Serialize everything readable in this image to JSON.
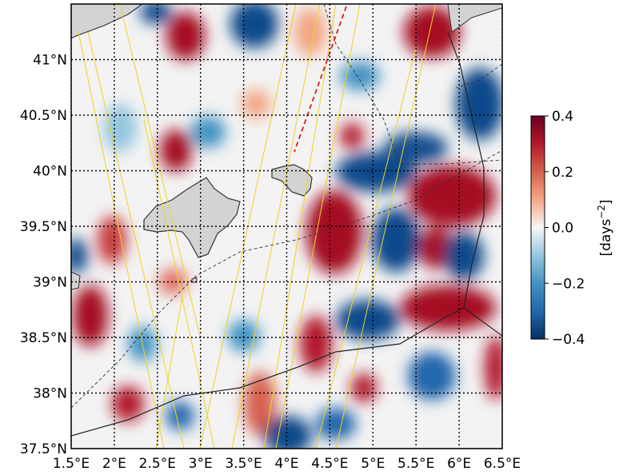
{
  "map": {
    "region": "Balearic Islands / western Mediterranean",
    "x_ticks": [
      "1.5°E",
      "2°E",
      "2.5°E",
      "3°E",
      "3.5°E",
      "4°E",
      "4.5°E",
      "5°E",
      "5.5°E",
      "6°E",
      "6.5°E"
    ],
    "y_ticks": [
      "41°N",
      "40.5°N",
      "40°N",
      "39.5°N",
      "39°N",
      "38.5°N",
      "38°N",
      "37.5°N"
    ],
    "lon_range": [
      1.5,
      6.5
    ],
    "lat_range": [
      37.5,
      41.5
    ],
    "grid": "dotted black"
  },
  "colorbar": {
    "label": "[days$^{-2}$]",
    "label_base": "[days",
    "label_sup": "−2",
    "label_end": "]",
    "ticks": [
      "0.4",
      "0.2",
      "0.0",
      "−0.2",
      "−0.4"
    ],
    "range": [
      -0.4,
      0.4
    ],
    "colormap": "RdBu_r"
  },
  "colors": {
    "land": "#d3d3d3",
    "coast": "#333333",
    "red_strong": "#a00b1f",
    "blue_strong": "#0a3b78",
    "tracks": "#f2d21f",
    "ref_line": "#e31a1c"
  }
}
